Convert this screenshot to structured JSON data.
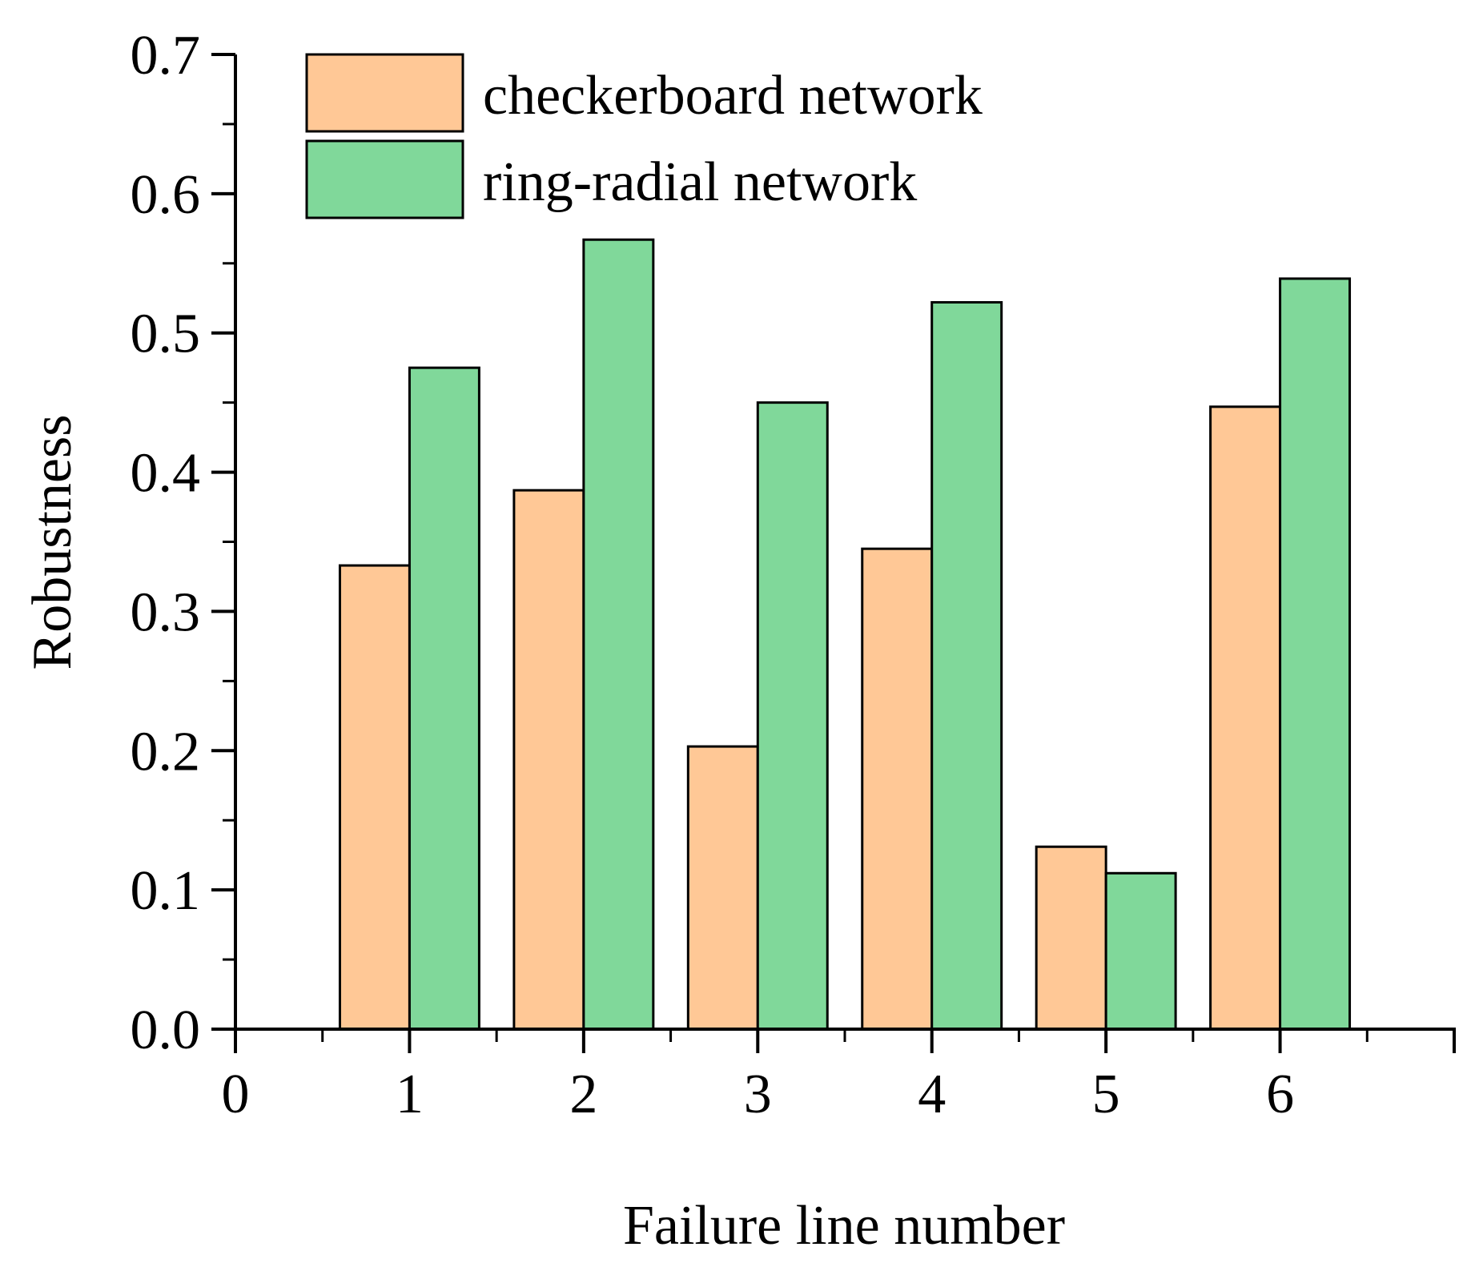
{
  "chart_data": {
    "type": "bar",
    "xlabel": "Failure line number",
    "ylabel": "Robustness",
    "xlim": [
      0,
      7
    ],
    "ylim": [
      0,
      0.7
    ],
    "x_ticks": [
      "0",
      "1",
      "2",
      "3",
      "4",
      "5",
      "6"
    ],
    "y_ticks": [
      "0.0",
      "0.1",
      "0.2",
      "0.3",
      "0.4",
      "0.5",
      "0.6",
      "0.7"
    ],
    "categories": [
      1,
      2,
      3,
      4,
      5,
      6
    ],
    "series": [
      {
        "name": "checkerboard network",
        "color": "#FFC896",
        "values": [
          0.333,
          0.387,
          0.203,
          0.345,
          0.131,
          0.447
        ]
      },
      {
        "name": "ring-radial network",
        "color": "#80D89A",
        "values": [
          0.475,
          0.567,
          0.45,
          0.522,
          0.112,
          0.539
        ]
      }
    ],
    "legend": {
      "position": "top-left"
    },
    "grid": false
  }
}
